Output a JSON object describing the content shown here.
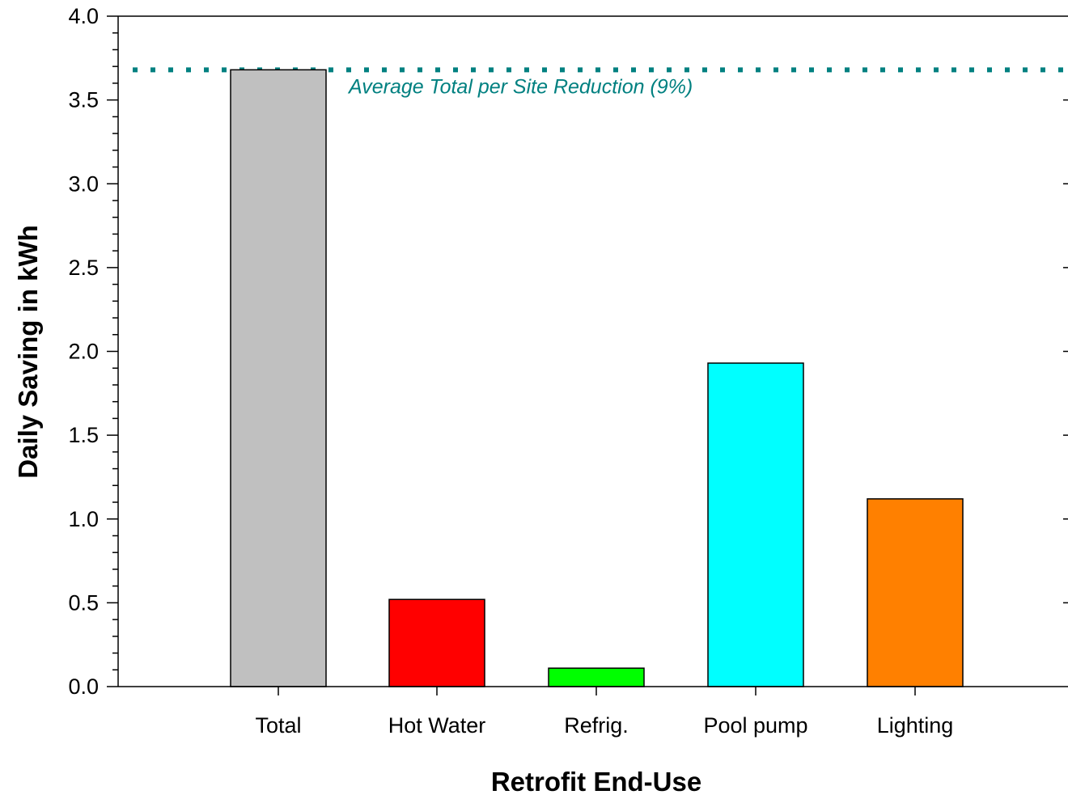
{
  "chart_data": {
    "type": "bar",
    "title": "",
    "xlabel": "Retrofit End-Use",
    "ylabel": "Daily Saving in kWh",
    "categories": [
      "Total",
      "Hot Water",
      "Refrig.",
      "Pool pump",
      "Lighting"
    ],
    "values": [
      3.68,
      0.52,
      0.11,
      1.93,
      1.12
    ],
    "bar_colors": [
      "#c0c0c0",
      "#ff0000",
      "#00ff00",
      "#00ffff",
      "#ff8000"
    ],
    "ylim": [
      0,
      4
    ],
    "yticks": [
      "0.0",
      "0.5",
      "1.0",
      "1.5",
      "2.0",
      "2.5",
      "3.0",
      "3.5",
      "4.0"
    ],
    "grid": false,
    "legend": "none",
    "reference_line": {
      "value": 3.68,
      "label": "Average Total per Site Reduction (9%)",
      "color": "#008080",
      "style": "dotted"
    }
  }
}
